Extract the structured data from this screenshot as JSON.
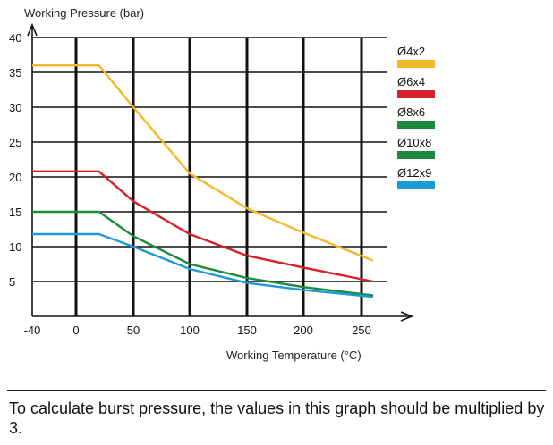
{
  "chart_data": {
    "type": "line",
    "xlabel": "Working Temperature (°C)",
    "ylabel": "Working Pressure (bar)",
    "xlim": [
      -40,
      260
    ],
    "ylim": [
      0,
      40
    ],
    "x_ticks": [
      -40,
      0,
      50,
      100,
      150,
      200,
      250
    ],
    "y_ticks": [
      5,
      10,
      15,
      20,
      25,
      30,
      35,
      40
    ],
    "grid": true,
    "legend_position": "right",
    "series": [
      {
        "name": "Ø4x2",
        "color": "#f4b82a",
        "points": [
          [
            -40,
            36
          ],
          [
            20,
            36
          ],
          [
            50,
            30
          ],
          [
            100,
            20.5
          ],
          [
            150,
            15.5
          ],
          [
            200,
            12
          ],
          [
            260,
            8
          ]
        ]
      },
      {
        "name": "Ø6x4",
        "color": "#d7202a",
        "points": [
          [
            -40,
            20.8
          ],
          [
            20,
            20.8
          ],
          [
            50,
            16.5
          ],
          [
            100,
            11.8
          ],
          [
            150,
            8.7
          ],
          [
            200,
            7
          ],
          [
            260,
            5
          ]
        ]
      },
      {
        "name": "Ø8x6",
        "color": "#1d8a3c",
        "points": [
          [
            -40,
            15
          ],
          [
            20,
            15
          ],
          [
            50,
            11.5
          ],
          [
            100,
            7.5
          ],
          [
            150,
            5.5
          ],
          [
            200,
            4.2
          ],
          [
            260,
            3
          ]
        ]
      },
      {
        "name": "Ø10x8",
        "color": "#1d8a3c",
        "points": []
      },
      {
        "name": "Ø12x9",
        "color": "#1a9ad6",
        "points": [
          [
            -40,
            11.8
          ],
          [
            20,
            11.8
          ],
          [
            50,
            10
          ],
          [
            100,
            6.8
          ],
          [
            150,
            4.8
          ],
          [
            200,
            3.8
          ],
          [
            260,
            2.8
          ]
        ]
      }
    ]
  },
  "note": "To calculate burst pressure, the values in this graph should be multiplied by 3."
}
